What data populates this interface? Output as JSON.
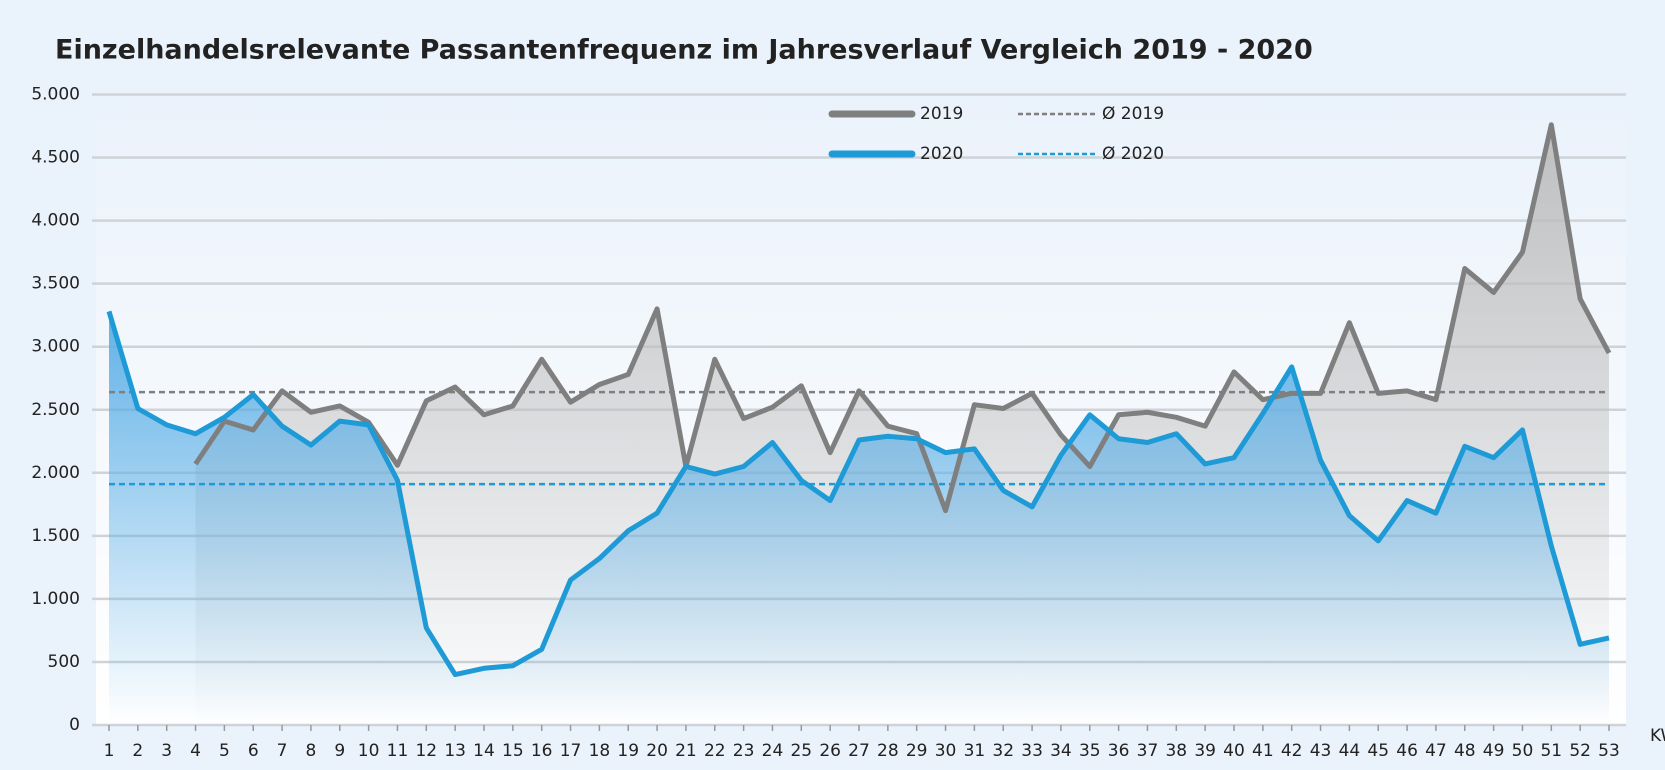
{
  "chart_data": {
    "type": "line",
    "title": "Einzelhandelsrelevante Passantenfrequenz im Jahresverlauf Vergleich 2019 - 2020",
    "x_label": "KW",
    "categories": [
      "1",
      "2",
      "3",
      "4",
      "5",
      "6",
      "7",
      "8",
      "9",
      "10",
      "11",
      "12",
      "13",
      "14",
      "15",
      "16",
      "17",
      "18",
      "19",
      "20",
      "21",
      "22",
      "23",
      "24",
      "25",
      "26",
      "27",
      "28",
      "29",
      "30",
      "31",
      "32",
      "33",
      "34",
      "35",
      "36",
      "37",
      "38",
      "39",
      "40",
      "41",
      "42",
      "43",
      "44",
      "45",
      "46",
      "47",
      "48",
      "49",
      "50",
      "51",
      "52",
      "53"
    ],
    "series": [
      {
        "name": "2019",
        "color": "#7f7f7f",
        "fill": "#bdbdbd",
        "values": [
          null,
          null,
          null,
          2070,
          2410,
          2340,
          2650,
          2480,
          2530,
          2400,
          2060,
          2570,
          2680,
          2460,
          2530,
          2900,
          2560,
          2700,
          2780,
          3300,
          2050,
          2900,
          2430,
          2520,
          2690,
          2160,
          2650,
          2370,
          2310,
          1700,
          2540,
          2510,
          2630,
          2300,
          2050,
          2460,
          2480,
          2440,
          2370,
          2800,
          2580,
          2630,
          2630,
          3190,
          2630,
          2650,
          2580,
          3620,
          3430,
          3750,
          4760,
          3380,
          2950
        ]
      },
      {
        "name": "2020",
        "color": "#1e9ad6",
        "fill": "#5aaee6",
        "values": [
          3280,
          2510,
          2380,
          2310,
          2440,
          2620,
          2370,
          2220,
          2410,
          2380,
          1940,
          770,
          400,
          450,
          470,
          600,
          1150,
          1320,
          1540,
          1680,
          2050,
          1990,
          2050,
          2240,
          1940,
          1780,
          2260,
          2290,
          2270,
          2160,
          2190,
          1860,
          1730,
          2140,
          2460,
          2270,
          2240,
          2310,
          2070,
          2120,
          2470,
          2840,
          2100,
          1660,
          1460,
          1780,
          1680,
          2210,
          2120,
          2340,
          1420,
          640,
          690
        ]
      }
    ],
    "averages": [
      {
        "name": "Ø 2019",
        "color": "#7f7f7f",
        "value": 2640
      },
      {
        "name": "Ø 2020",
        "color": "#1e9ad6",
        "value": 1910
      }
    ],
    "ylim": [
      0,
      5000
    ],
    "yticks": [
      0,
      500,
      {
        "value": 1000,
        "label": "1.000"
      },
      {
        "value": 1500,
        "label": "1.500"
      },
      {
        "value": 2000,
        "label": "2.000"
      },
      {
        "value": 2500,
        "label": "2.500"
      },
      {
        "value": 3000,
        "label": "3.000"
      },
      {
        "value": 3500,
        "label": "3.500"
      },
      {
        "value": 4000,
        "label": "4.000"
      },
      {
        "value": 4500,
        "label": "4.500"
      },
      {
        "value": 5000,
        "label": "5.000"
      }
    ],
    "grid": true
  }
}
